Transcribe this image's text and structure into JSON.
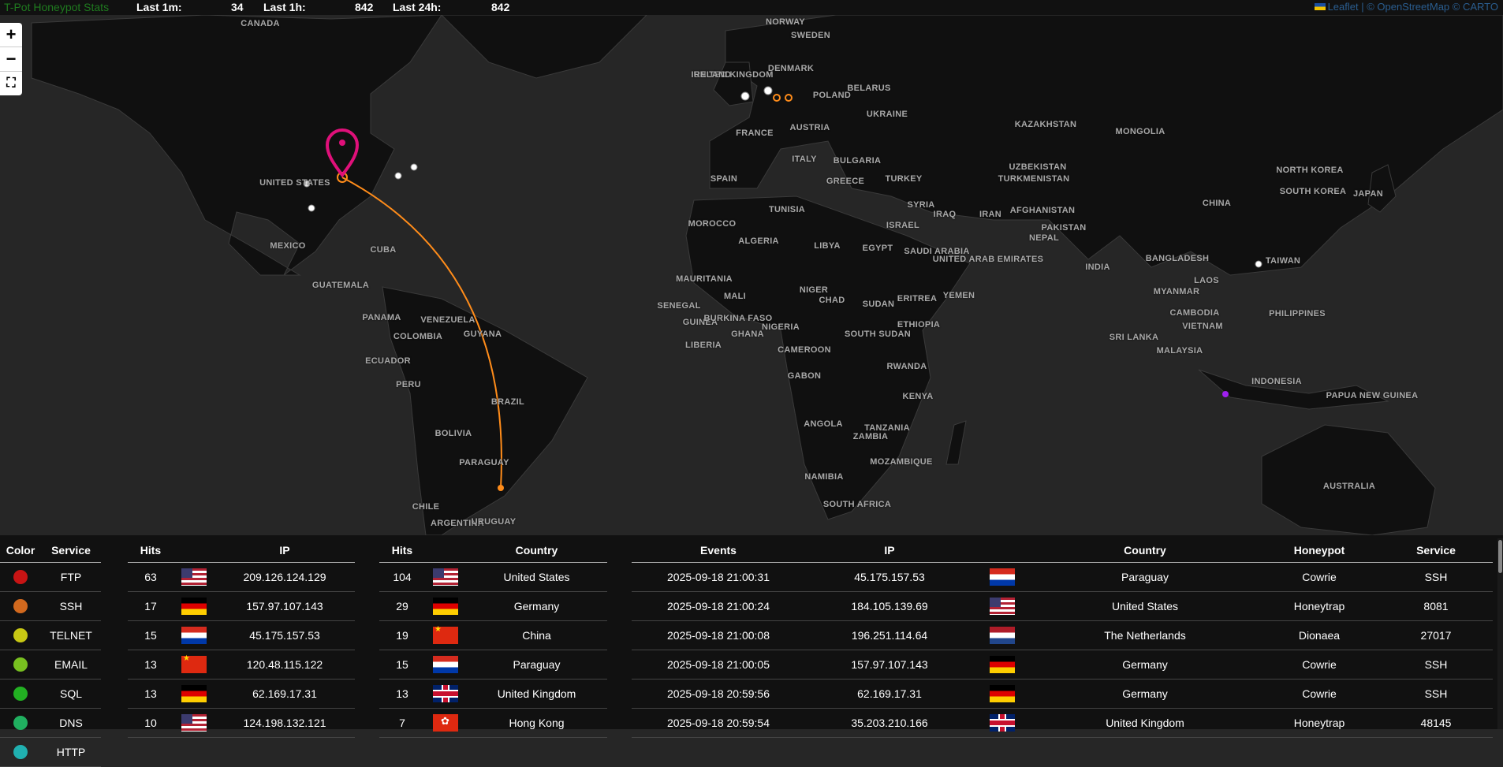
{
  "header": {
    "brand": "T-Pot Honeypot Stats",
    "last_1m_label": "Last 1m:",
    "last_1m_value": "34",
    "last_1h_label": "Last 1h:",
    "last_1h_value": "842",
    "last_24h_label": "Last 24h:",
    "last_24h_value": "842",
    "attribution": "Leaflet | © OpenStreetMap © CARTO"
  },
  "map_controls": {
    "zoom_in": "+",
    "zoom_out": "−",
    "fullscreen": "⛶"
  },
  "map_labels": [
    "CANADA",
    "UNITED STATES",
    "MEXICO",
    "CUBA",
    "GUATEMALA",
    "PANAMA",
    "VENEZUELA",
    "GUYANA",
    "COLOMBIA",
    "ECUADOR",
    "PERU",
    "BRAZIL",
    "BOLIVIA",
    "PARAGUAY",
    "CHILE",
    "ARGENTINA",
    "URUGUAY",
    "NORWAY",
    "SWEDEN",
    "UNITED KINGDOM",
    "IRELAND",
    "DENMARK",
    "BELARUS",
    "POLAND",
    "UKRAINE",
    "FRANCE",
    "AUSTRIA",
    "ITALY",
    "BULGARIA",
    "SPAIN",
    "GREECE",
    "TURKEY",
    "KAZAKHSTAN",
    "MONGOLIA",
    "UZBEKISTAN",
    "TURKMENISTAN",
    "SYRIA",
    "IRAQ",
    "IRAN",
    "AFGHANISTAN",
    "PAKISTAN",
    "ISRAEL",
    "TUNISIA",
    "MOROCCO",
    "ALGERIA",
    "LIBYA",
    "EGYPT",
    "SAUDI ARABIA",
    "UNITED ARAB EMIRATES",
    "YEMEN",
    "ERITREA",
    "MAURITANIA",
    "MALI",
    "NIGER",
    "CHAD",
    "SUDAN",
    "SENEGAL",
    "GUINEA",
    "BURKINA FASO",
    "NIGERIA",
    "GHANA",
    "LIBERIA",
    "CAMEROON",
    "SOUTH SUDAN",
    "ETHIOPIA",
    "GABON",
    "KENYA",
    "RWANDA",
    "TANZANIA",
    "ANGOLA",
    "ZAMBIA",
    "MOZAMBIQUE",
    "NAMIBIA",
    "SOUTH AFRICA",
    "CHINA",
    "NORTH KOREA",
    "SOUTH KOREA",
    "JAPAN",
    "NEPAL",
    "INDIA",
    "BANGLADESH",
    "MYANMAR",
    "LAOS",
    "TAIWAN",
    "VIETNAM",
    "CAMBODIA",
    "PHILIPPINES",
    "SRI LANKA",
    "MALAYSIA",
    "INDONESIA",
    "PAPUA NEW GUINEA",
    "AUSTRALIA"
  ],
  "legend": {
    "headers": [
      "Color",
      "Service"
    ],
    "rows": [
      {
        "color": "#c81414",
        "service": "FTP"
      },
      {
        "color": "#d2691e",
        "service": "SSH"
      },
      {
        "color": "#c8c814",
        "service": "TELNET"
      },
      {
        "color": "#78c020",
        "service": "EMAIL"
      },
      {
        "color": "#22b022",
        "service": "SQL"
      },
      {
        "color": "#20b060",
        "service": "DNS"
      },
      {
        "color": "#20b0b0",
        "service": "HTTP"
      }
    ]
  },
  "top_ips": {
    "headers": [
      "Hits",
      "",
      "IP"
    ],
    "rows": [
      {
        "hits": "63",
        "flag": "us-flag-icon",
        "ip": "209.126.124.129"
      },
      {
        "hits": "17",
        "flag": "de-flag-icon",
        "ip": "157.97.107.143"
      },
      {
        "hits": "15",
        "flag": "py-flag-icon",
        "ip": "45.175.157.53"
      },
      {
        "hits": "13",
        "flag": "cn-flag-icon",
        "ip": "120.48.115.122"
      },
      {
        "hits": "13",
        "flag": "de-flag-icon",
        "ip": "62.169.17.31"
      },
      {
        "hits": "10",
        "flag": "us-flag-icon",
        "ip": "124.198.132.121"
      }
    ]
  },
  "top_countries": {
    "headers": [
      "Hits",
      "",
      "Country"
    ],
    "rows": [
      {
        "hits": "104",
        "flag": "us-flag-icon",
        "country": "United States"
      },
      {
        "hits": "29",
        "flag": "de-flag-icon",
        "country": "Germany"
      },
      {
        "hits": "19",
        "flag": "cn-flag-icon",
        "country": "China"
      },
      {
        "hits": "15",
        "flag": "py-flag-icon",
        "country": "Paraguay"
      },
      {
        "hits": "13",
        "flag": "gb-flag-icon",
        "country": "United Kingdom"
      },
      {
        "hits": "7",
        "flag": "hk-flag-icon",
        "country": "Hong Kong"
      }
    ]
  },
  "events": {
    "headers": [
      "Events",
      "IP",
      "",
      "Country",
      "Honeypot",
      "Service"
    ],
    "rows": [
      {
        "time": "2025-09-18 21:00:31",
        "ip": "45.175.157.53",
        "flag": "py-flag-icon",
        "country": "Paraguay",
        "honeypot": "Cowrie",
        "service": "SSH"
      },
      {
        "time": "2025-09-18 21:00:24",
        "ip": "184.105.139.69",
        "flag": "us-flag-icon",
        "country": "United States",
        "honeypot": "Honeytrap",
        "service": "8081"
      },
      {
        "time": "2025-09-18 21:00:08",
        "ip": "196.251.114.64",
        "flag": "nl-flag-icon",
        "country": "The Netherlands",
        "honeypot": "Dionaea",
        "service": "27017"
      },
      {
        "time": "2025-09-18 21:00:05",
        "ip": "157.97.107.143",
        "flag": "de-flag-icon",
        "country": "Germany",
        "honeypot": "Cowrie",
        "service": "SSH"
      },
      {
        "time": "2025-09-18 20:59:56",
        "ip": "62.169.17.31",
        "flag": "de-flag-icon",
        "country": "Germany",
        "honeypot": "Cowrie",
        "service": "SSH"
      },
      {
        "time": "2025-09-18 20:59:54",
        "ip": "35.203.210.166",
        "flag": "gb-flag-icon",
        "country": "United Kingdom",
        "honeypot": "Honeytrap",
        "service": "48145"
      }
    ]
  },
  "colors": {
    "attack_line": "#ff8c1a",
    "honeypot_marker": "#e0107a",
    "background": "#262626",
    "land": "#101010"
  }
}
